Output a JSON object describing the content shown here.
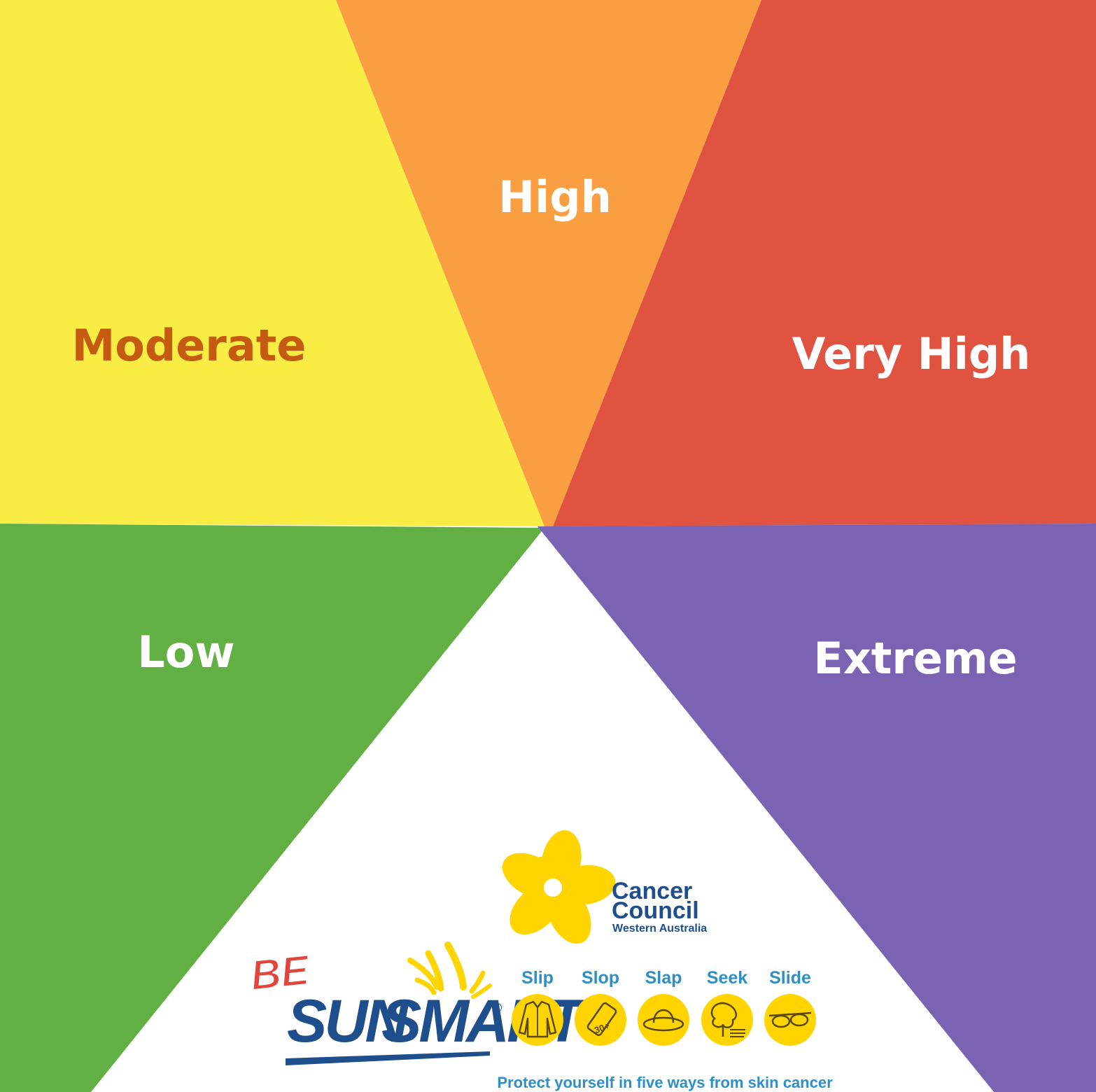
{
  "colors": {
    "low": "#62b044",
    "moderate": "#f9ec45",
    "high": "#f99e41",
    "very_high": "#e05341",
    "extreme": "#7b63b4",
    "center": "#ffffff",
    "label_light": "#ffffff",
    "label_moderate": "#c55a11",
    "brand_blue": "#1f4e8c",
    "accent_blue": "#2e8fc6",
    "daffodil": "#ffd400",
    "be_red": "#e0463c"
  },
  "segments": [
    {
      "id": "low",
      "label": "Low",
      "icon": "green-wedge"
    },
    {
      "id": "moderate",
      "label": "Moderate",
      "icon": "yellow-wedge"
    },
    {
      "id": "high",
      "label": "High",
      "icon": "orange-wedge"
    },
    {
      "id": "very_high",
      "label": "Very High",
      "icon": "red-wedge"
    },
    {
      "id": "extreme",
      "label": "Extreme",
      "icon": "purple-wedge"
    }
  ],
  "branding": {
    "organisation_line1": "Cancer",
    "organisation_line2": "Council",
    "organisation_region": "Western Australia",
    "campaign_prefix": "BE",
    "campaign_name_1": "SUN",
    "campaign_name_2": "SMART",
    "registered_mark": "®",
    "actions": [
      {
        "label": "Slip",
        "icon": "shirt-icon"
      },
      {
        "label": "Slop",
        "icon": "sunscreen-icon",
        "badge": "30+"
      },
      {
        "label": "Slap",
        "icon": "hat-icon"
      },
      {
        "label": "Seek",
        "icon": "shade-tree-icon"
      },
      {
        "label": "Slide",
        "icon": "sunglasses-icon"
      }
    ],
    "tagline": "Protect yourself in five ways from skin cancer"
  }
}
